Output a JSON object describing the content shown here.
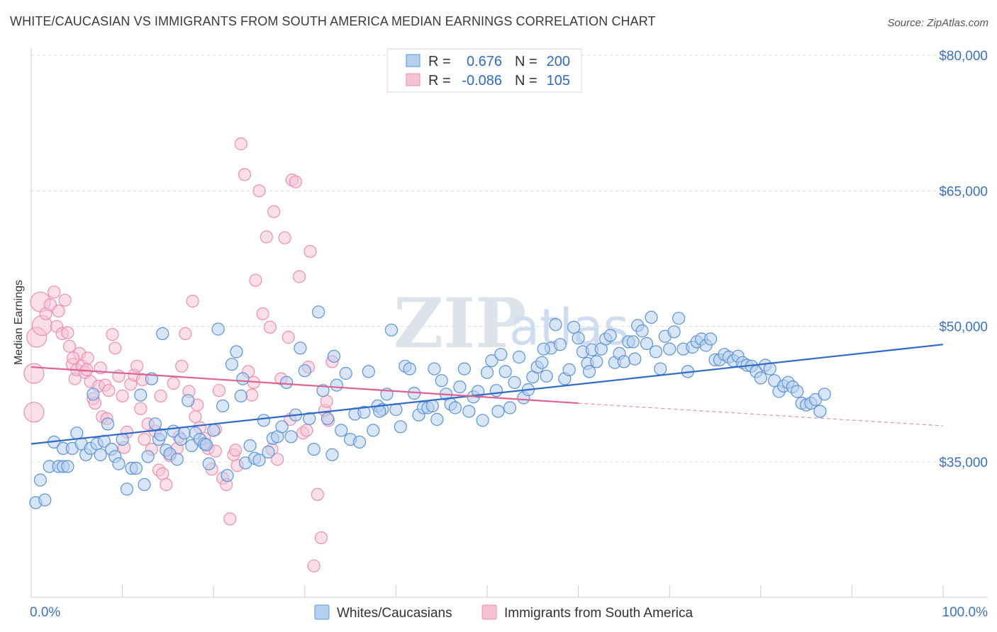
{
  "header": {
    "title": "WHITE/CAUCASIAN VS IMMIGRANTS FROM SOUTH AMERICA MEDIAN EARNINGS CORRELATION CHART",
    "source": "Source: ZipAtlas.com"
  },
  "watermark": {
    "zip": "ZIP",
    "atlas": "atlas"
  },
  "legend": {
    "rows": [
      {
        "r_label": "R =",
        "r_value": "0.676",
        "n_label": "N =",
        "n_value": "200"
      },
      {
        "r_label": "R =",
        "r_value": "-0.086",
        "n_label": "N =",
        "n_value": "105"
      }
    ]
  },
  "colors": {
    "blue_stroke": "#5b93d6",
    "blue_fill": "#b8d0f0",
    "blue_line": "#2f6ac8",
    "pink_stroke": "#ec8fb0",
    "pink_fill": "#f6c3d5",
    "pink_line": "#e0608f",
    "grid": "#d8dde3",
    "axis_text": "#3a72c4"
  },
  "chart_data": {
    "type": "scatter",
    "title": "WHITE/CAUCASIAN VS IMMIGRANTS FROM SOUTH AMERICA MEDIAN EARNINGS CORRELATION CHART",
    "xlabel": "",
    "ylabel": "Median Earnings",
    "xlim": [
      0,
      100
    ],
    "ylim": [
      20000,
      82000
    ],
    "x_tick_labels": [
      "0.0%",
      "100.0%"
    ],
    "y_ticks": [
      {
        "value": 35000,
        "label": "$35,000"
      },
      {
        "value": 50000,
        "label": "$50,000"
      },
      {
        "value": 65000,
        "label": "$65,000"
      },
      {
        "value": 80000,
        "label": "$80,000"
      }
    ],
    "series": [
      {
        "name": "Whites/Caucasians",
        "color": "blue",
        "trend": {
          "x0": 0,
          "y0": 37000,
          "x1": 100,
          "y1": 48000
        },
        "points": [
          [
            0.5,
            30500
          ],
          [
            1,
            33000
          ],
          [
            1.5,
            30800
          ],
          [
            2,
            34500
          ],
          [
            2.5,
            37200
          ],
          [
            3,
            34500
          ],
          [
            3.5,
            34500
          ],
          [
            3.5,
            36500
          ],
          [
            4,
            34500
          ],
          [
            4.5,
            36500
          ],
          [
            5,
            38200
          ],
          [
            5.5,
            37000
          ],
          [
            6,
            35800
          ],
          [
            6.5,
            36500
          ],
          [
            6.8,
            42500
          ],
          [
            7.2,
            37000
          ],
          [
            7.6,
            35800
          ],
          [
            8,
            37300
          ],
          [
            8.4,
            39200
          ],
          [
            8.8,
            36400
          ],
          [
            9.2,
            35600
          ],
          [
            9.6,
            34800
          ],
          [
            10,
            37500
          ],
          [
            10.5,
            32000
          ],
          [
            11,
            34300
          ],
          [
            11.5,
            34300
          ],
          [
            12,
            42400
          ],
          [
            12.4,
            32500
          ],
          [
            12.8,
            35600
          ],
          [
            13.2,
            44200
          ],
          [
            13.6,
            39200
          ],
          [
            14,
            37500
          ],
          [
            14.4,
            49200
          ],
          [
            14.8,
            36300
          ],
          [
            15.2,
            35900
          ],
          [
            15.6,
            38400
          ],
          [
            16,
            35300
          ],
          [
            16.4,
            37500
          ],
          [
            16.8,
            38200
          ],
          [
            17.2,
            41800
          ],
          [
            17.6,
            36800
          ],
          [
            18,
            38200
          ],
          [
            18.5,
            37500
          ],
          [
            19,
            37000
          ],
          [
            19.5,
            34800
          ],
          [
            20,
            38500
          ],
          [
            20.5,
            49700
          ],
          [
            21,
            41200
          ],
          [
            21.5,
            33500
          ],
          [
            22,
            45800
          ],
          [
            22.5,
            47200
          ],
          [
            23,
            42300
          ],
          [
            23.5,
            34900
          ],
          [
            24,
            36800
          ],
          [
            24.5,
            35400
          ],
          [
            25,
            35200
          ],
          [
            25.5,
            39600
          ],
          [
            26,
            36100
          ],
          [
            26.5,
            37600
          ],
          [
            27,
            37800
          ],
          [
            27.5,
            38900
          ],
          [
            28,
            43800
          ],
          [
            28.5,
            37800
          ],
          [
            29,
            40200
          ],
          [
            29.5,
            47600
          ],
          [
            30,
            45100
          ],
          [
            30.5,
            39800
          ],
          [
            31,
            36400
          ],
          [
            31.5,
            51600
          ],
          [
            32,
            42900
          ],
          [
            32.5,
            39800
          ],
          [
            33,
            35800
          ],
          [
            33.5,
            43500
          ],
          [
            34,
            38500
          ],
          [
            34.5,
            44800
          ],
          [
            35,
            37500
          ],
          [
            35.5,
            40300
          ],
          [
            36,
            37200
          ],
          [
            36.5,
            40500
          ],
          [
            37,
            45000
          ],
          [
            37.5,
            38500
          ],
          [
            38,
            41200
          ],
          [
            38.5,
            40800
          ],
          [
            39,
            42500
          ],
          [
            39.5,
            49600
          ],
          [
            40,
            40800
          ],
          [
            40.5,
            38900
          ],
          [
            41,
            45600
          ],
          [
            41.5,
            45300
          ],
          [
            42,
            42600
          ],
          [
            42.5,
            40200
          ],
          [
            43,
            41000
          ],
          [
            43.5,
            41000
          ],
          [
            44,
            41200
          ],
          [
            44.5,
            39700
          ],
          [
            45,
            44000
          ],
          [
            45.5,
            42500
          ],
          [
            46,
            41400
          ],
          [
            46.5,
            41000
          ],
          [
            47,
            43300
          ],
          [
            47.5,
            45300
          ],
          [
            48,
            40600
          ],
          [
            48.5,
            42200
          ],
          [
            49,
            42800
          ],
          [
            49.5,
            39600
          ],
          [
            50,
            44900
          ],
          [
            50.5,
            46200
          ],
          [
            51,
            42900
          ],
          [
            51.5,
            46900
          ],
          [
            52,
            45000
          ],
          [
            52.5,
            41000
          ],
          [
            53,
            43800
          ],
          [
            53.5,
            46600
          ],
          [
            54,
            42100
          ],
          [
            54.5,
            43000
          ],
          [
            55,
            44400
          ],
          [
            55.5,
            45500
          ],
          [
            56,
            46000
          ],
          [
            56.5,
            44500
          ],
          [
            57,
            47600
          ],
          [
            57.5,
            50200
          ],
          [
            58,
            48000
          ],
          [
            58.5,
            44200
          ],
          [
            59,
            45200
          ],
          [
            59.5,
            49900
          ],
          [
            60,
            48700
          ],
          [
            60.5,
            47200
          ],
          [
            61,
            45900
          ],
          [
            61.5,
            47400
          ],
          [
            62,
            46100
          ],
          [
            62.5,
            47500
          ],
          [
            63,
            48600
          ],
          [
            63.5,
            49000
          ],
          [
            64,
            46000
          ],
          [
            64.5,
            47000
          ],
          [
            65,
            46100
          ],
          [
            65.5,
            48300
          ],
          [
            66,
            48300
          ],
          [
            66.5,
            50100
          ],
          [
            67,
            49500
          ],
          [
            67.5,
            48100
          ],
          [
            68,
            51000
          ],
          [
            68.5,
            47200
          ],
          [
            69,
            45300
          ],
          [
            69.5,
            48900
          ],
          [
            70,
            47500
          ],
          [
            70.5,
            49400
          ],
          [
            71,
            50900
          ],
          [
            71.5,
            47500
          ],
          [
            72,
            45000
          ],
          [
            72.5,
            47700
          ],
          [
            73,
            48300
          ],
          [
            73.5,
            48600
          ],
          [
            74,
            47900
          ],
          [
            74.5,
            48600
          ],
          [
            75,
            46300
          ],
          [
            75.5,
            46300
          ],
          [
            76,
            46900
          ],
          [
            76.5,
            46600
          ],
          [
            77,
            46200
          ],
          [
            77.5,
            46700
          ],
          [
            78,
            46000
          ],
          [
            78.5,
            45700
          ],
          [
            79,
            45600
          ],
          [
            79.5,
            45000
          ],
          [
            80,
            44300
          ],
          [
            80.5,
            45700
          ],
          [
            81,
            45300
          ],
          [
            81.5,
            44000
          ],
          [
            82,
            42800
          ],
          [
            82.5,
            43400
          ],
          [
            83,
            43800
          ],
          [
            83.5,
            43300
          ],
          [
            84,
            42800
          ],
          [
            84.5,
            41500
          ],
          [
            85,
            41300
          ],
          [
            85.5,
            41500
          ],
          [
            86,
            41900
          ],
          [
            86.5,
            40600
          ],
          [
            87,
            42500
          ],
          [
            14.2,
            38000
          ],
          [
            19.2,
            36900
          ],
          [
            23.2,
            44200
          ],
          [
            33.2,
            46700
          ],
          [
            38.2,
            40600
          ],
          [
            44.2,
            45300
          ],
          [
            51.2,
            40600
          ],
          [
            56.2,
            47500
          ],
          [
            61.2,
            45000
          ],
          [
            66.2,
            46400
          ]
        ]
      },
      {
        "name": "Immigrants from South America",
        "color": "pink",
        "trend": {
          "x0": 0,
          "y0": 45500,
          "x1": 60,
          "y1": 41500
        },
        "trend_dashed": {
          "x0": 60,
          "y0": 41500,
          "x1": 100,
          "y1": 39000
        },
        "points": [
          [
            0.3,
            40500
          ],
          [
            0.3,
            44800
          ],
          [
            0.6,
            48800
          ],
          [
            1,
            52700
          ],
          [
            1.2,
            50100
          ],
          [
            1.6,
            51400
          ],
          [
            2.1,
            52400
          ],
          [
            2.5,
            53800
          ],
          [
            2.8,
            50000
          ],
          [
            3,
            51700
          ],
          [
            3.4,
            49200
          ],
          [
            3.7,
            52900
          ],
          [
            4,
            49300
          ],
          [
            4.2,
            47800
          ],
          [
            4.5,
            45800
          ],
          [
            4.8,
            44200
          ],
          [
            5,
            45200
          ],
          [
            5.3,
            47000
          ],
          [
            5.6,
            45600
          ],
          [
            5.9,
            44900
          ],
          [
            6.2,
            46500
          ],
          [
            6.5,
            43900
          ],
          [
            6.8,
            42000
          ],
          [
            7,
            41500
          ],
          [
            7.4,
            43400
          ],
          [
            7.8,
            40000
          ],
          [
            8.1,
            43500
          ],
          [
            8.5,
            42900
          ],
          [
            8.9,
            49100
          ],
          [
            9.2,
            47600
          ],
          [
            9.6,
            44500
          ],
          [
            10,
            42300
          ],
          [
            10.5,
            38300
          ],
          [
            10.9,
            43600
          ],
          [
            11.3,
            44600
          ],
          [
            11.6,
            45600
          ],
          [
            12,
            40900
          ],
          [
            12.4,
            37500
          ],
          [
            12.8,
            39200
          ],
          [
            13.2,
            36400
          ],
          [
            13.6,
            38400
          ],
          [
            14,
            34100
          ],
          [
            14.4,
            33700
          ],
          [
            14.8,
            32500
          ],
          [
            15.2,
            35700
          ],
          [
            15.6,
            43700
          ],
          [
            16,
            36500
          ],
          [
            16.5,
            45600
          ],
          [
            16.9,
            49200
          ],
          [
            17.3,
            42800
          ],
          [
            17.7,
            52800
          ],
          [
            18,
            40000
          ],
          [
            18.5,
            38800
          ],
          [
            19,
            37600
          ],
          [
            19.4,
            36500
          ],
          [
            19.8,
            34200
          ],
          [
            20.2,
            36200
          ],
          [
            20.6,
            42900
          ],
          [
            21,
            33200
          ],
          [
            21.4,
            32500
          ],
          [
            21.8,
            28700
          ],
          [
            22.2,
            35800
          ],
          [
            22.6,
            34600
          ],
          [
            23,
            70200
          ],
          [
            23.4,
            66800
          ],
          [
            23.8,
            45000
          ],
          [
            24.2,
            42400
          ],
          [
            24.6,
            55100
          ],
          [
            25,
            65000
          ],
          [
            25.4,
            51400
          ],
          [
            25.8,
            59900
          ],
          [
            26.2,
            49900
          ],
          [
            26.6,
            62700
          ],
          [
            27,
            35300
          ],
          [
            27.4,
            44200
          ],
          [
            27.8,
            59800
          ],
          [
            28.2,
            48800
          ],
          [
            28.6,
            66200
          ],
          [
            29,
            66000
          ],
          [
            29.4,
            55500
          ],
          [
            29.8,
            38200
          ],
          [
            30.2,
            38500
          ],
          [
            30.6,
            58300
          ],
          [
            31,
            23500
          ],
          [
            31.4,
            31400
          ],
          [
            31.8,
            26600
          ],
          [
            32.2,
            40700
          ],
          [
            32.6,
            39600
          ],
          [
            33,
            46100
          ],
          [
            6.1,
            45200
          ],
          [
            8.3,
            39800
          ],
          [
            10.2,
            36600
          ],
          [
            12.2,
            44100
          ],
          [
            14.2,
            42300
          ],
          [
            16.2,
            37800
          ],
          [
            18.2,
            41300
          ],
          [
            20.2,
            38600
          ],
          [
            22.4,
            36300
          ],
          [
            24.4,
            43800
          ],
          [
            26.4,
            36400
          ],
          [
            28.4,
            39700
          ],
          [
            30.4,
            45500
          ],
          [
            32.4,
            41700
          ],
          [
            4.6,
            46500
          ],
          [
            7.6,
            45400
          ]
        ]
      }
    ]
  },
  "bottom_legend": {
    "items": [
      {
        "label": "Whites/Caucasians"
      },
      {
        "label": "Immigrants from South America"
      }
    ]
  }
}
